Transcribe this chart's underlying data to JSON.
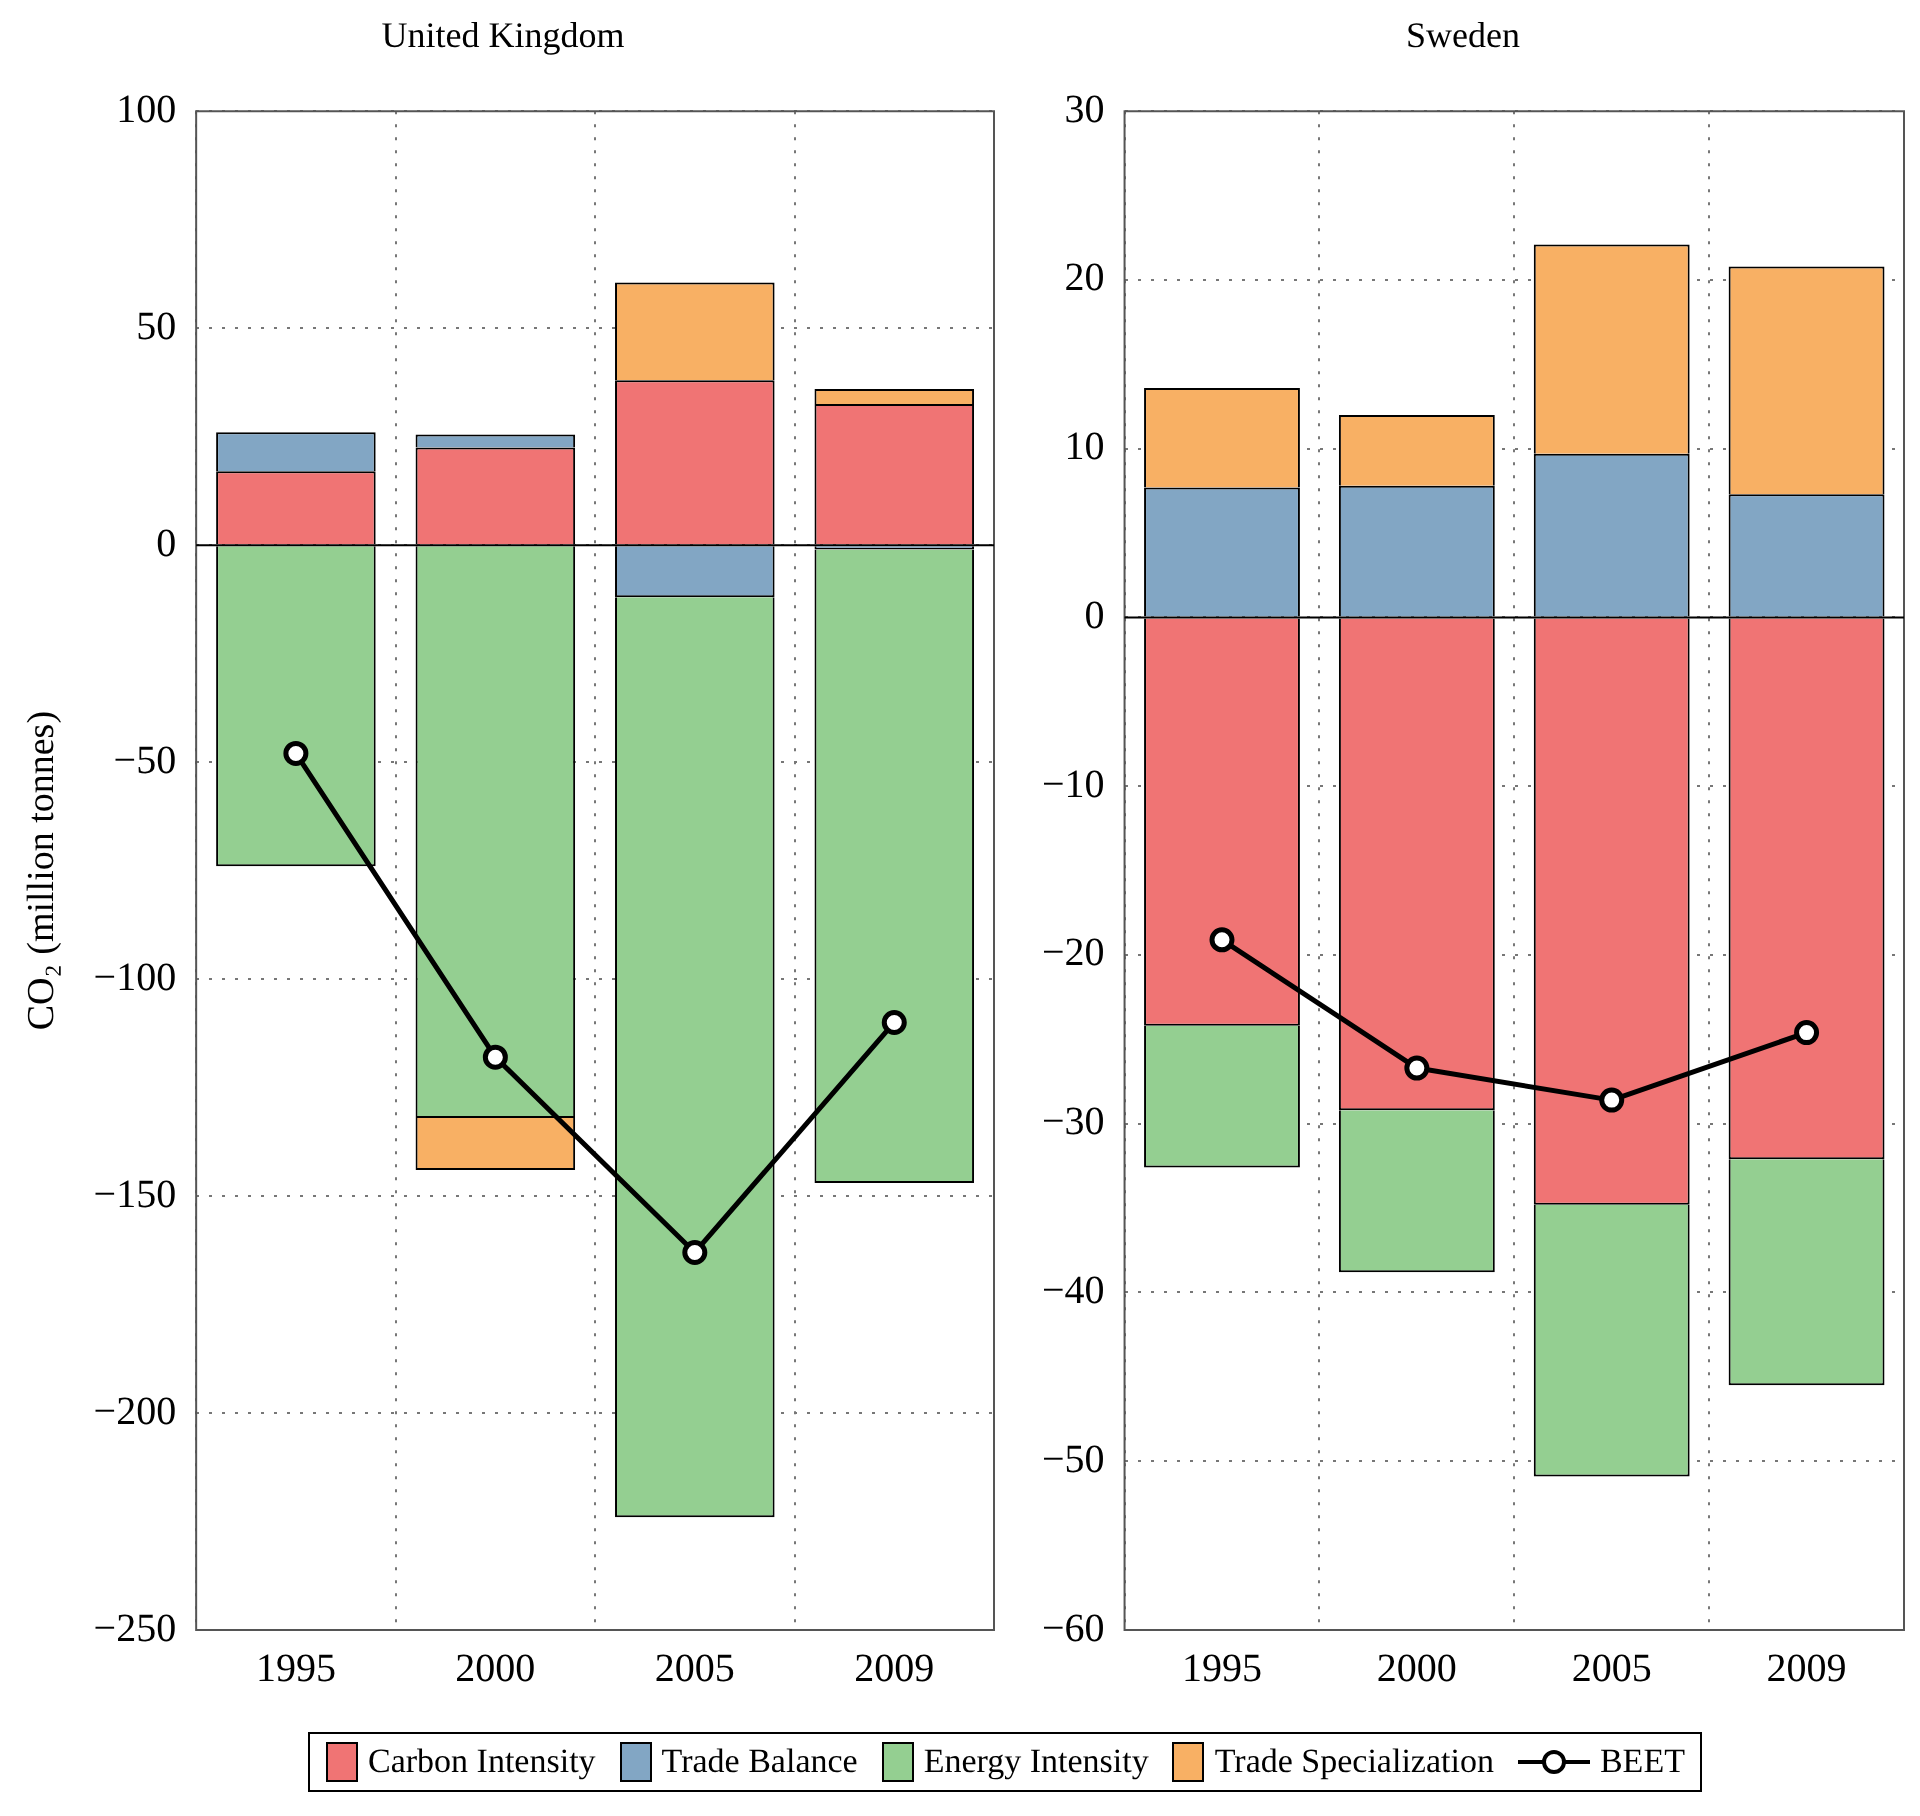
{
  "chart_data": [
    {
      "type": "bar",
      "title": "United Kingdom",
      "ylabel": "CO₂ (million tonnes)",
      "categories": [
        "1995",
        "2000",
        "2005",
        "2009"
      ],
      "stacked": true,
      "series": [
        {
          "name": "Carbon Intensity",
          "color": "#f07474",
          "values": [
            17,
            22.5,
            38,
            32.5
          ]
        },
        {
          "name": "Trade Balance",
          "color": "#82a6c4",
          "values": [
            9,
            3,
            -12,
            -1
          ]
        },
        {
          "name": "Energy Intensity",
          "color": "#94cf91",
          "values": [
            -74,
            -132,
            -212,
            -146
          ]
        },
        {
          "name": "Trade Specialization",
          "color": "#f8b064",
          "values": [
            null,
            -12,
            22.5,
            3.5
          ]
        },
        {
          "name": "BEET",
          "type": "line",
          "color": "#000000",
          "marker": "circle",
          "values": [
            -48,
            -118,
            -163,
            -110
          ]
        }
      ],
      "ylim": [
        -250,
        100
      ],
      "yticks": [
        -250,
        -200,
        -150,
        -100,
        -50,
        0,
        50,
        100
      ],
      "grid": true,
      "legend": "bottom"
    },
    {
      "type": "bar",
      "title": "Sweden",
      "categories": [
        "1995",
        "2000",
        "2005",
        "2009"
      ],
      "stacked": true,
      "series": [
        {
          "color": "#f07474",
          "values": [
            -24.2,
            -29.2,
            -34.8,
            -32.1
          ]
        },
        {
          "color": "#82a6c4",
          "values": [
            7.7,
            7.8,
            9.7,
            7.3
          ]
        },
        {
          "color": "#94cf91",
          "values": [
            -8.4,
            -9.6,
            -16.1,
            -13.4
          ]
        },
        {
          "color": "#f8b064",
          "values": [
            5.9,
            4.2,
            12.4,
            13.5
          ]
        },
        {
          "type": "line",
          "color": "#000000",
          "marker": "circle",
          "values": [
            -19.1,
            -26.7,
            -28.6,
            -24.6
          ]
        }
      ],
      "ylim": [
        -60,
        30
      ],
      "yticks": [
        -60,
        -50,
        -40,
        -30,
        -20,
        -10,
        0,
        10,
        20,
        30
      ],
      "grid": true
    }
  ]
}
